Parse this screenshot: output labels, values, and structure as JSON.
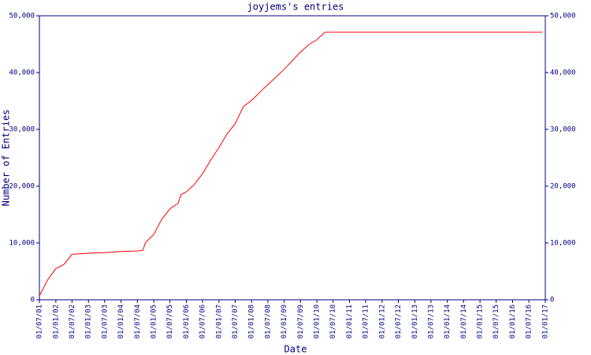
{
  "chart_data": {
    "type": "line",
    "title": "joyjems's entries",
    "x_label": "Date",
    "y_label": "Number of Entries",
    "color": "#ff0000",
    "axis_color": "#000080",
    "x": [
      "2001-07-01",
      "2001-10-01",
      "2002-01-01",
      "2002-04-01",
      "2002-07-01",
      "2003-01-01",
      "2003-07-01",
      "2004-01-01",
      "2004-07-01",
      "2004-09-01",
      "2004-10-01",
      "2005-01-01",
      "2005-04-01",
      "2005-07-01",
      "2005-10-01",
      "2005-11-01",
      "2006-01-01",
      "2006-04-01",
      "2006-07-01",
      "2006-10-01",
      "2007-01-01",
      "2007-04-01",
      "2007-07-01",
      "2007-10-01",
      "2008-01-01",
      "2008-04-01",
      "2008-07-01",
      "2008-10-01",
      "2009-01-01",
      "2009-04-01",
      "2009-07-01",
      "2009-10-01",
      "2010-01-01",
      "2010-04-01",
      "2016-12-01"
    ],
    "values": [
      700,
      3500,
      5500,
      6200,
      8000,
      8200,
      8300,
      8500,
      8600,
      8700,
      10100,
      11500,
      14200,
      16000,
      17000,
      18500,
      19000,
      20300,
      22200,
      24600,
      26800,
      29200,
      31000,
      34000,
      35100,
      36500,
      37900,
      39200,
      40600,
      42100,
      43600,
      44900,
      45800,
      47100,
      47100
    ],
    "xlim": [
      "2001-07-01",
      "2017-01-01"
    ],
    "xticks": [
      {
        "value": "2001-07-01",
        "label": "01/07/01"
      },
      {
        "value": "2002-01-01",
        "label": "01/01/02"
      },
      {
        "value": "2002-07-01",
        "label": "01/07/02"
      },
      {
        "value": "2003-01-01",
        "label": "01/01/03"
      },
      {
        "value": "2003-07-01",
        "label": "01/07/03"
      },
      {
        "value": "2004-01-01",
        "label": "01/01/04"
      },
      {
        "value": "2004-07-01",
        "label": "01/07/04"
      },
      {
        "value": "2005-01-01",
        "label": "01/01/05"
      },
      {
        "value": "2005-07-01",
        "label": "01/07/05"
      },
      {
        "value": "2006-01-01",
        "label": "01/01/06"
      },
      {
        "value": "2006-07-01",
        "label": "01/07/06"
      },
      {
        "value": "2007-01-01",
        "label": "01/01/07"
      },
      {
        "value": "2007-07-01",
        "label": "01/07/07"
      },
      {
        "value": "2008-01-01",
        "label": "01/01/08"
      },
      {
        "value": "2008-07-01",
        "label": "01/07/08"
      },
      {
        "value": "2009-01-01",
        "label": "01/01/09"
      },
      {
        "value": "2009-07-01",
        "label": "01/07/09"
      },
      {
        "value": "2010-01-01",
        "label": "01/01/10"
      },
      {
        "value": "2010-07-01",
        "label": "01/07/10"
      },
      {
        "value": "2011-01-01",
        "label": "01/01/11"
      },
      {
        "value": "2011-07-01",
        "label": "01/07/11"
      },
      {
        "value": "2012-01-01",
        "label": "01/01/12"
      },
      {
        "value": "2012-07-01",
        "label": "01/07/12"
      },
      {
        "value": "2013-01-01",
        "label": "01/01/13"
      },
      {
        "value": "2013-07-01",
        "label": "01/07/13"
      },
      {
        "value": "2014-01-01",
        "label": "01/01/14"
      },
      {
        "value": "2014-07-01",
        "label": "01/07/14"
      },
      {
        "value": "2015-01-01",
        "label": "01/01/15"
      },
      {
        "value": "2015-07-01",
        "label": "01/07/15"
      },
      {
        "value": "2016-01-01",
        "label": "01/01/16"
      },
      {
        "value": "2016-07-01",
        "label": "01/07/16"
      },
      {
        "value": "2017-01-01",
        "label": "01/01/17"
      }
    ],
    "ylim": [
      0,
      50000
    ],
    "yticks": [
      0,
      {
        "value": 10000,
        "label": "10,000"
      },
      {
        "value": 20000,
        "label": "20,000"
      },
      {
        "value": 30000,
        "label": "30,000"
      },
      {
        "value": 40000,
        "label": "40,000"
      },
      {
        "value": 50000,
        "label": "50,000"
      }
    ],
    "y2lim": [
      0,
      50000
    ],
    "y2ticks": [
      0,
      {
        "value": 10000,
        "label": "10,000"
      },
      {
        "value": 20000,
        "label": "20,000"
      },
      {
        "value": 30000,
        "label": "30,000"
      },
      {
        "value": 40000,
        "label": "40,000"
      },
      {
        "value": 50000,
        "label": "50,000"
      }
    ],
    "grid": false
  }
}
